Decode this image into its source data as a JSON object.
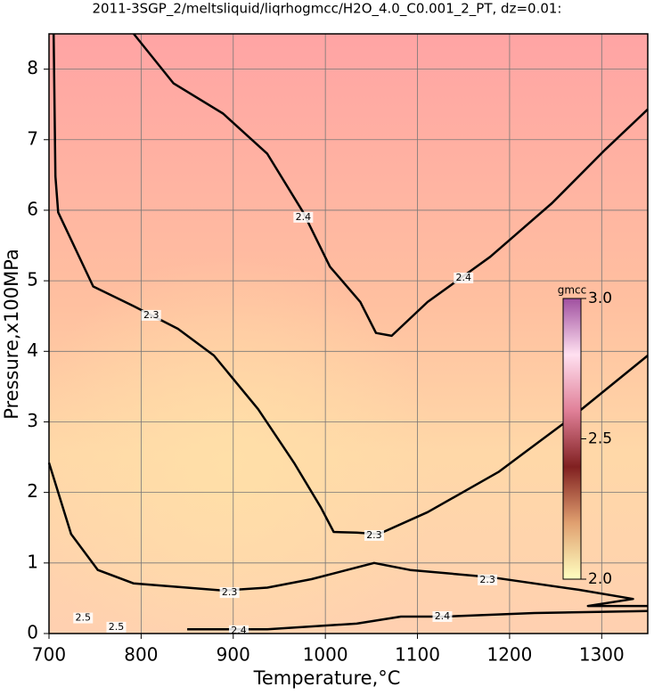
{
  "chart_data": {
    "type": "contour",
    "title": "2011-3SGP_2/meltsliquid/liqrhogmcc/H2O_4.0_C0.001_2_PT, dz=0.01:",
    "x_label": "Temperature,°C",
    "y_label": "Pressure,x100MPa",
    "xlim": [
      700,
      1350
    ],
    "ylim": [
      0,
      8.5
    ],
    "xticks": [
      700,
      800,
      900,
      1000,
      1100,
      1200,
      1300
    ],
    "yticks": [
      0,
      1,
      2,
      3,
      4,
      5,
      6,
      7,
      8
    ],
    "grid": true,
    "contours": [
      {
        "x": [
          792,
          835,
          889,
          937,
          976,
          1005,
          1038,
          1055,
          1072,
          1111,
          1179,
          1246,
          1304,
          1350
        ],
        "y": [
          8.5,
          7.8,
          7.37,
          6.8,
          5.97,
          5.2,
          4.7,
          4.26,
          4.22,
          4.7,
          5.34,
          6.1,
          6.86,
          7.43
        ]
      },
      {
        "x": [
          705,
          707,
          710,
          748,
          792,
          840,
          879,
          927,
          966,
          995,
          1009,
          1034,
          1058,
          1111,
          1188,
          1266,
          1350
        ],
        "y": [
          8.5,
          6.48,
          5.97,
          4.92,
          4.64,
          4.32,
          3.94,
          3.18,
          2.42,
          1.79,
          1.44,
          1.43,
          1.41,
          1.72,
          2.29,
          3.05,
          3.94
        ]
      },
      {
        "x": [
          700,
          724,
          753,
          792,
          889,
          937,
          985,
          1053,
          1092,
          1179,
          1275,
          1334,
          1285,
          1350
        ],
        "y": [
          2.42,
          1.41,
          0.9,
          0.71,
          0.61,
          0.65,
          0.77,
          1.0,
          0.9,
          0.8,
          0.62,
          0.49,
          0.39,
          0.39
        ]
      },
      {
        "x": [
          850,
          937,
          1034,
          1082,
          1130,
          1227,
          1350
        ],
        "y": [
          0.06,
          0.06,
          0.14,
          0.24,
          0.24,
          0.29,
          0.32
        ]
      }
    ],
    "contour_labels": [
      {
        "text": "2.4",
        "x": 976,
        "y": 5.9
      },
      {
        "text": "2.4",
        "x": 1150,
        "y": 5.04
      },
      {
        "text": "2.3",
        "x": 811,
        "y": 4.51
      },
      {
        "text": "2.3",
        "x": 1053,
        "y": 1.39
      },
      {
        "text": "2.3",
        "x": 896,
        "y": 0.58
      },
      {
        "text": "2.3",
        "x": 1176,
        "y": 0.76
      },
      {
        "text": "2.4",
        "x": 1127,
        "y": 0.24
      },
      {
        "text": "2.4",
        "x": 906,
        "y": 0.04
      },
      {
        "text": "2.5",
        "x": 773,
        "y": 0.09
      },
      {
        "text": "2.5",
        "x": 737,
        "y": 0.22
      }
    ],
    "colorbar": {
      "label": "gmcc",
      "lim": [
        2.0,
        3.0
      ],
      "ticks": [
        {
          "value": 2.0,
          "label": "2.0"
        },
        {
          "value": 2.5,
          "label": "2.5"
        },
        {
          "value": 3.0,
          "label": "3.0"
        }
      ],
      "colors": [
        "#ffffc0",
        "#e0a070",
        "#802020",
        "#e08098",
        "#ffe0f0",
        "#a050a0"
      ]
    }
  }
}
